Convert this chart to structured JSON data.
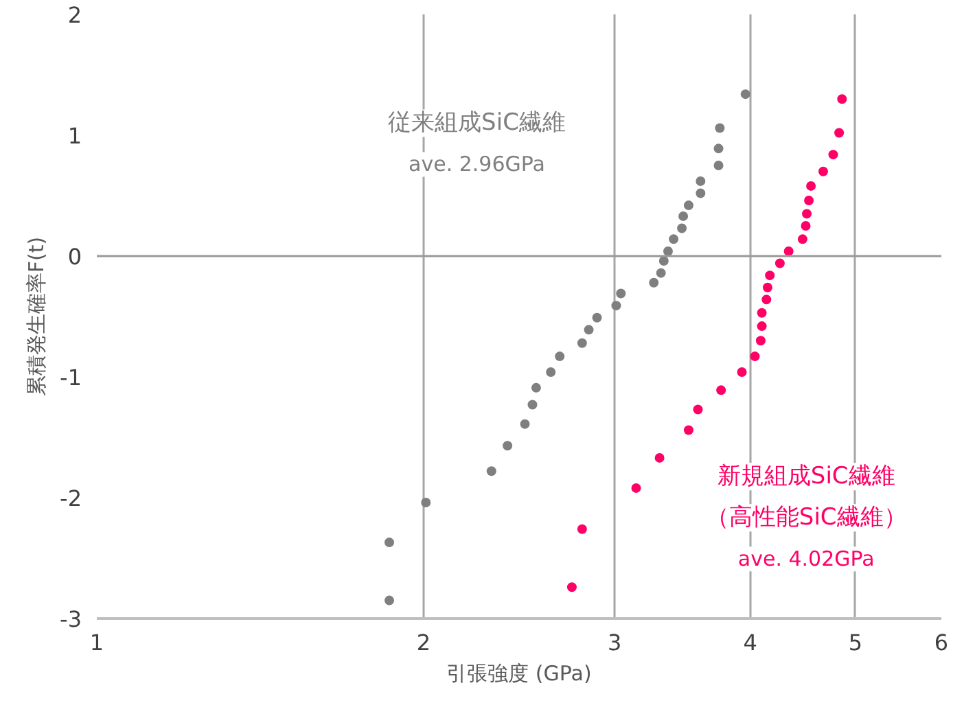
{
  "chart_data": {
    "type": "scatter",
    "xlabel": "引張強度 (GPa)",
    "ylabel": "累積発生確率F(t)",
    "log": "x",
    "xlim": [
      1,
      6
    ],
    "xticks": [
      1,
      2,
      3,
      4,
      5,
      6
    ],
    "ylim": [
      -3,
      2
    ],
    "yticks": [
      -3,
      -2,
      -1,
      0,
      1,
      2
    ],
    "grid": "x",
    "marker": "circle",
    "ref_lines": [
      {
        "axis": "y",
        "value": 0,
        "color": "#999999"
      }
    ],
    "annotations": [
      "ave. 2.96GPa",
      "（高性能SiC繊維）",
      "ave. 4.02GPa"
    ],
    "series": [
      {
        "name": "従来組成SiC繊維",
        "color": "#7f7f7f",
        "x": [
          1.86,
          1.86,
          2.01,
          2.31,
          2.39,
          2.48,
          2.52,
          2.54,
          2.62,
          2.67,
          2.8,
          2.84,
          2.89,
          3.01,
          3.04,
          3.26,
          3.31,
          3.33,
          3.36,
          3.4,
          3.46,
          3.47,
          3.51,
          3.6,
          3.6,
          3.74,
          3.74,
          3.75,
          3.96
        ],
        "values": [
          -2.85,
          -2.37,
          -2.04,
          -1.78,
          -1.57,
          -1.39,
          -1.23,
          -1.09,
          -0.96,
          -0.83,
          -0.72,
          -0.61,
          -0.51,
          -0.41,
          -0.31,
          -0.22,
          -0.14,
          -0.04,
          0.04,
          0.14,
          0.23,
          0.33,
          0.42,
          0.52,
          0.62,
          0.75,
          0.89,
          1.06,
          1.34
        ]
      },
      {
        "name": "新規組成SiC繊維",
        "color": "#ff0066",
        "x": [
          2.74,
          2.8,
          3.14,
          3.3,
          3.51,
          3.58,
          3.76,
          3.93,
          4.04,
          4.09,
          4.1,
          4.1,
          4.14,
          4.15,
          4.17,
          4.26,
          4.34,
          4.47,
          4.5,
          4.51,
          4.53,
          4.55,
          4.67,
          4.77,
          4.83,
          4.86
        ],
        "values": [
          -2.74,
          -2.26,
          -1.92,
          -1.67,
          -1.44,
          -1.27,
          -1.11,
          -0.96,
          -0.83,
          -0.7,
          -0.58,
          -0.47,
          -0.36,
          -0.26,
          -0.16,
          -0.06,
          0.04,
          0.14,
          0.25,
          0.35,
          0.46,
          0.58,
          0.7,
          0.84,
          1.02,
          1.3
        ]
      }
    ]
  }
}
